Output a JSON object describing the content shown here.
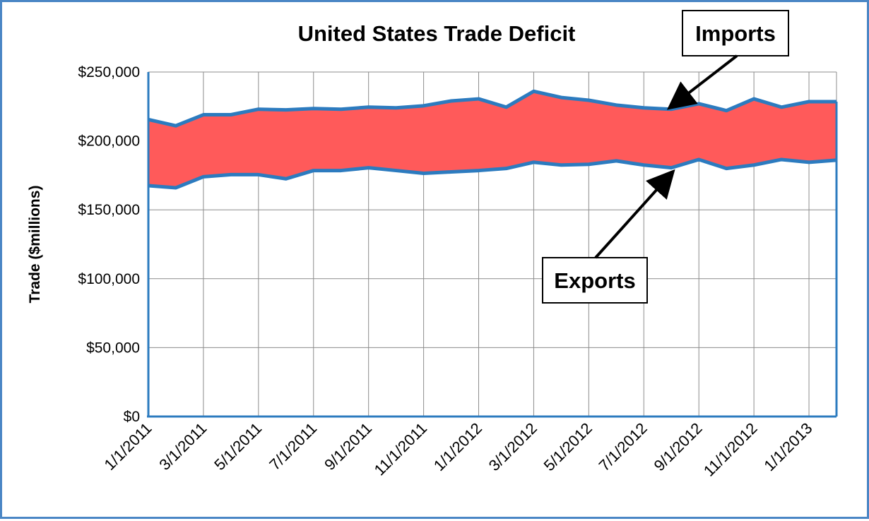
{
  "chart_data": {
    "type": "area",
    "title": "United States Trade Deficit",
    "ylabel": "Trade ($millions)",
    "xlabel": "",
    "ylim": [
      0,
      250000
    ],
    "yticks": [
      0,
      50000,
      100000,
      150000,
      200000,
      250000
    ],
    "ytick_labels": [
      "$0",
      "$50,000",
      "$100,000",
      "$150,000",
      "$200,000",
      "$250,000"
    ],
    "x": [
      "1/1/2011",
      "2/1/2011",
      "3/1/2011",
      "4/1/2011",
      "5/1/2011",
      "6/1/2011",
      "7/1/2011",
      "8/1/2011",
      "9/1/2011",
      "10/1/2011",
      "11/1/2011",
      "12/1/2011",
      "1/1/2012",
      "2/1/2012",
      "3/1/2012",
      "4/1/2012",
      "5/1/2012",
      "6/1/2012",
      "7/1/2012",
      "8/1/2012",
      "9/1/2012",
      "10/1/2012",
      "11/1/2012",
      "12/1/2012",
      "1/1/2013",
      "2/1/2013"
    ],
    "xtick_labels": [
      "1/1/2011",
      "3/1/2011",
      "5/1/2011",
      "7/1/2011",
      "9/1/2011",
      "11/1/2011",
      "1/1/2012",
      "3/1/2012",
      "5/1/2012",
      "7/1/2012",
      "9/1/2012",
      "11/1/2012",
      "1/1/2013"
    ],
    "series": [
      {
        "name": "Imports",
        "values": [
          215500,
          211000,
          219000,
          219000,
          223000,
          222500,
          223500,
          223000,
          224500,
          224000,
          225500,
          229000,
          230500,
          224500,
          236000,
          231500,
          229500,
          226000,
          224000,
          223000,
          227000,
          222000,
          230500,
          224500,
          228500,
          228500
        ]
      },
      {
        "name": "Exports",
        "values": [
          167500,
          166000,
          174000,
          175500,
          175500,
          172500,
          178500,
          178500,
          180500,
          178500,
          176500,
          177500,
          178500,
          180000,
          184500,
          182500,
          183000,
          185500,
          182500,
          180500,
          186500,
          180000,
          182500,
          186500,
          184500,
          186000
        ]
      }
    ],
    "grid": true,
    "fill_between": {
      "color": "#ff5a5a",
      "label": ""
    },
    "line_color": "#2c7bbf",
    "annotations": [
      {
        "text": "Imports",
        "target_x": "8/1/2012",
        "target_series": "Imports"
      },
      {
        "text": "Exports",
        "target_x": "8/1/2012",
        "target_series": "Exports"
      }
    ]
  }
}
